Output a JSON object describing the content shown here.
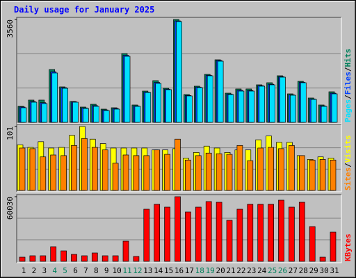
{
  "chart_data": [
    {
      "type": "bar",
      "title": "Daily usage for January 2025",
      "categories": [
        "1",
        "2",
        "3",
        "4",
        "5",
        "6",
        "7",
        "8",
        "9",
        "10",
        "11",
        "12",
        "13",
        "14",
        "15",
        "16",
        "17",
        "18",
        "19",
        "20",
        "21",
        "22",
        "23",
        "24",
        "25",
        "26",
        "27",
        "28",
        "29",
        "30",
        "31"
      ],
      "label_colors": [
        "#000000",
        "#000000",
        "#000000",
        "#00805c",
        "#00805c",
        "#000000",
        "#000000",
        "#000000",
        "#000000",
        "#000000",
        "#00805c",
        "#00805c",
        "#000000",
        "#000000",
        "#000000",
        "#000000",
        "#000000",
        "#00805c",
        "#00805c",
        "#000000",
        "#000000",
        "#000000",
        "#000000",
        "#000000",
        "#00805c",
        "#00805c",
        "#000000",
        "#000000",
        "#000000",
        "#000000",
        "#000000"
      ],
      "legend_separator": "/",
      "series": [
        {
          "name": "Hits",
          "color": "#00805c",
          "values": [
            553,
            770,
            770,
            1828,
            1227,
            722,
            529,
            625,
            457,
            505,
            2381,
            601,
            1082,
            1443,
            1179,
            3560,
            962,
            1251,
            1660,
            2165,
            1010,
            1155,
            1155,
            1299,
            1371,
            1612,
            986,
            1419,
            842,
            601,
            1058
          ]
        },
        {
          "name": "Files",
          "color": "#0040ff",
          "values": [
            530,
            720,
            680,
            1750,
            1200,
            710,
            500,
            580,
            430,
            480,
            2320,
            570,
            1050,
            1380,
            1150,
            3510,
            930,
            1220,
            1630,
            2140,
            980,
            1110,
            1100,
            1270,
            1320,
            1580,
            950,
            1390,
            810,
            570,
            1010
          ]
        },
        {
          "name": "Pages",
          "color": "#00e0ff",
          "values": [
            505,
            697,
            649,
            1708,
            1178,
            697,
            481,
            553,
            409,
            457,
            2285,
            553,
            1034,
            1347,
            1130,
            3487,
            914,
            1202,
            1611,
            2116,
            962,
            1082,
            1082,
            1251,
            1299,
            1563,
            938,
            1371,
            794,
            553,
            986
          ]
        }
      ],
      "ylim": [
        0,
        3560
      ],
      "yticks": [
        3560
      ]
    },
    {
      "type": "bar",
      "series": [
        {
          "name": "Visits",
          "color": "#ffff00",
          "values": [
            72,
            68,
            77,
            67,
            68,
            87,
            101,
            81,
            74,
            67,
            67,
            67,
            67,
            64,
            64,
            66,
            51,
            60,
            70,
            67,
            60,
            64,
            64,
            80,
            86,
            76,
            76,
            55,
            49,
            53,
            51
          ]
        },
        {
          "name": "Sites",
          "color": "#ff8000",
          "values": [
            67,
            66,
            53,
            56,
            55,
            71,
            82,
            68,
            64,
            43,
            56,
            55,
            55,
            64,
            57,
            81,
            48,
            55,
            59,
            58,
            57,
            71,
            47,
            67,
            68,
            66,
            71,
            55,
            48,
            49,
            48
          ]
        }
      ],
      "ylim": [
        0,
        101
      ],
      "yticks": [
        101
      ]
    },
    {
      "type": "bar",
      "series": [
        {
          "name": "KBytes",
          "color": "#ff0000",
          "values": [
            3873,
            5164,
            5164,
            13556,
            9683,
            6455,
            5164,
            7746,
            5164,
            5164,
            18720,
            4519,
            48413,
            52931,
            50349,
            60030,
            45831,
            50349,
            55513,
            54868,
            38085,
            48413,
            52931,
            52931,
            52931,
            56804,
            50349,
            54868,
            32275,
            3873,
            27111
          ]
        }
      ],
      "ylim": [
        0,
        60030
      ],
      "yticks": [
        60030
      ]
    }
  ]
}
